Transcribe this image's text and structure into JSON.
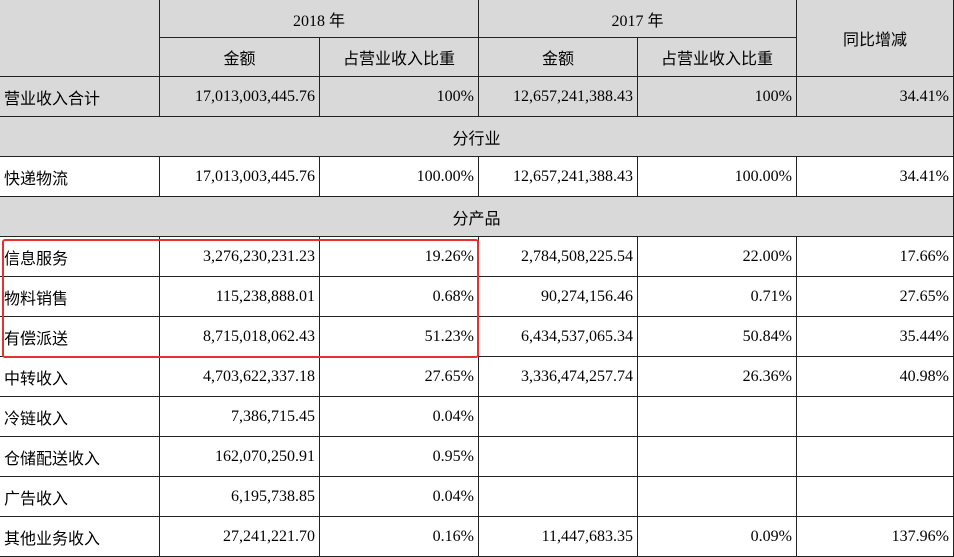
{
  "table": {
    "header": {
      "corner": null,
      "year_2018": "2018 年",
      "year_2017": "2017 年",
      "yoy": "同比增减",
      "columns": [
        "金额",
        "占营业收入比重",
        "金额",
        "占营业收入比重"
      ]
    },
    "rows": [
      [
        "营业收入合计",
        "17,013,003,445.76",
        "100%",
        "12,657,241,388.43",
        "100%",
        "34.41%"
      ],
      [
        "分行业"
      ],
      [
        "快递物流",
        "17,013,003,445.76",
        "100.00%",
        "12,657,241,388.43",
        "100.00%",
        "34.41%"
      ],
      [
        "分产品"
      ],
      [
        "信息服务",
        "3,276,230,231.23",
        "19.26%",
        "2,784,508,225.54",
        "22.00%",
        "17.66%"
      ],
      [
        "物料销售",
        "115,238,888.01",
        "0.68%",
        "90,274,156.46",
        "0.71%",
        "27.65%"
      ],
      [
        "有偿派送",
        "8,715,018,062.43",
        "51.23%",
        "6,434,537,065.34",
        "50.84%",
        "35.44%"
      ],
      [
        "中转收入",
        "4,703,622,337.18",
        "27.65%",
        "3,336,474,257.74",
        "26.36%",
        "40.98%"
      ],
      [
        "冷链收入",
        "7,386,715.45",
        "0.04%",
        null,
        null,
        null
      ],
      [
        "仓储配送收入",
        "162,070,250.91",
        "0.95%",
        null,
        null,
        null
      ],
      [
        "广告收入",
        "6,195,738.85",
        "0.04%",
        null,
        null,
        null
      ],
      [
        "其他业务收入",
        "27,241,221.70",
        "0.16%",
        "11,447,683.35",
        "0.09%",
        "137.96%"
      ]
    ]
  }
}
